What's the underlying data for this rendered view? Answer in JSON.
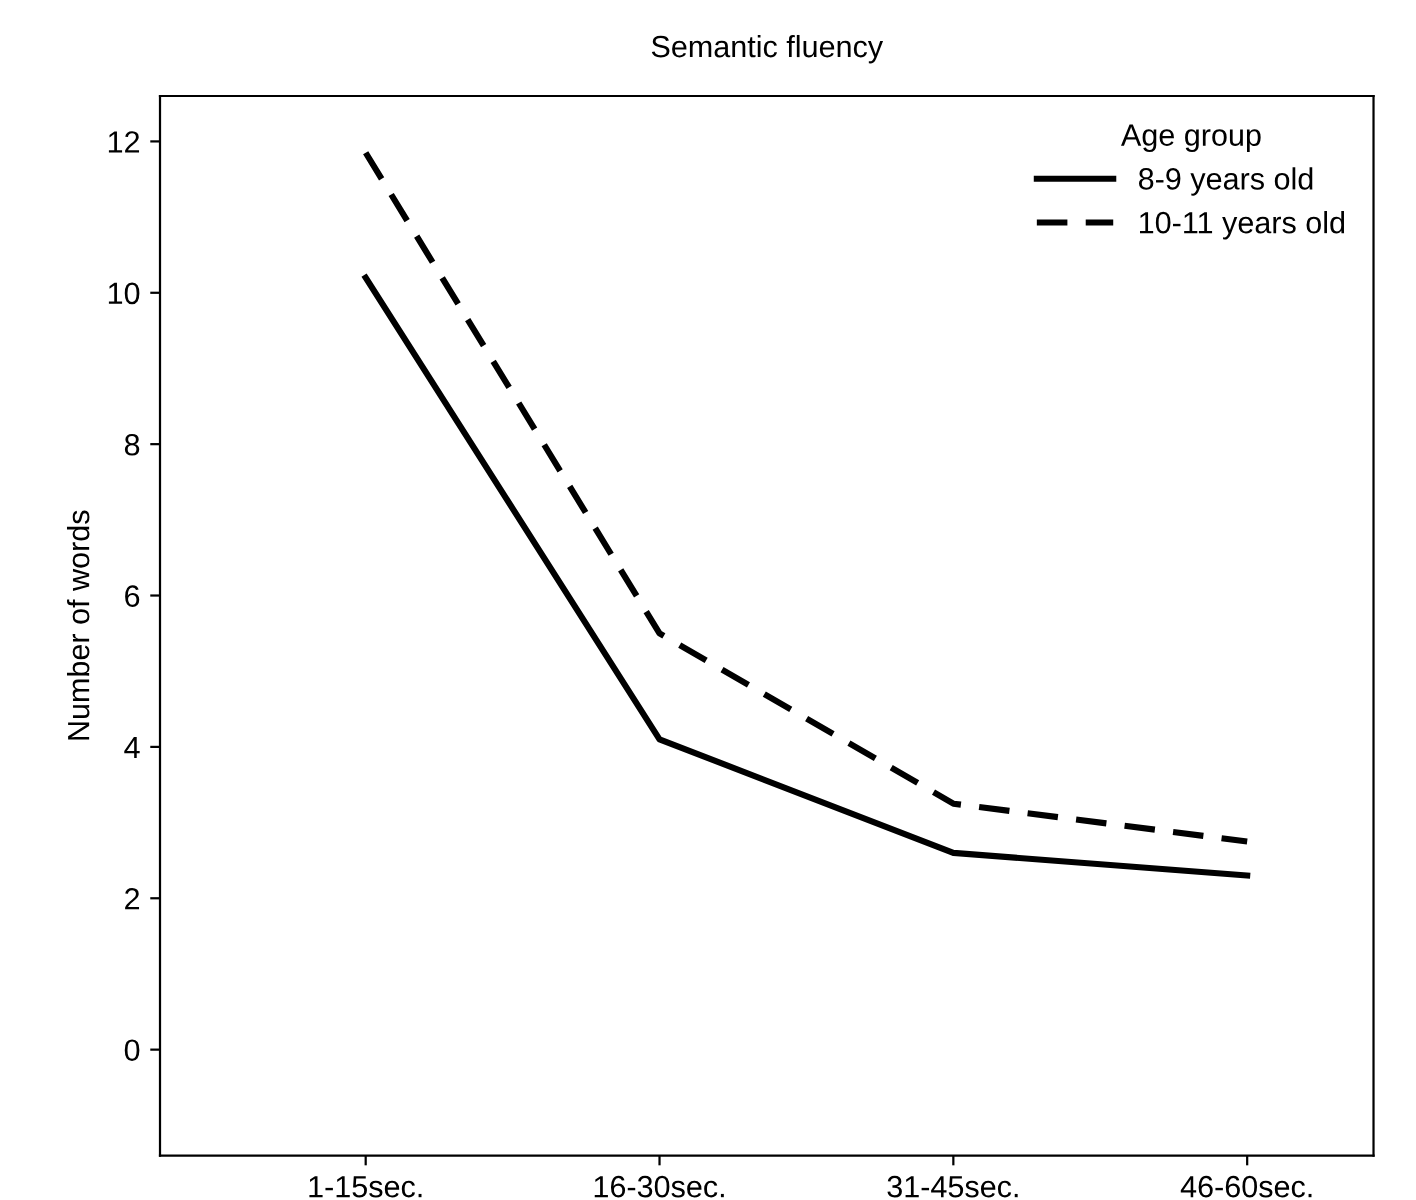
{
  "chart_data": {
    "type": "line",
    "title": "Semantic fluency",
    "ylabel": "Number of words",
    "categories": [
      "1-15sec.",
      "16-30sec.",
      "31-45sec.",
      "46-60sec."
    ],
    "series": [
      {
        "name": "8-9 years old",
        "color": "#000000",
        "line_style": "solid",
        "values": [
          10.2,
          4.1,
          2.6,
          2.3
        ]
      },
      {
        "name": "10-11 years old",
        "color": "#000000",
        "line_style": "dashed",
        "values": [
          11.85,
          5.5,
          3.25,
          2.75
        ]
      }
    ],
    "legend_title": "Age group",
    "legend": "top right",
    "ylim": [
      -1.4,
      12.6
    ],
    "yticks": [
      0,
      2,
      4,
      6,
      8,
      10,
      12
    ],
    "grid": false,
    "marker": "none"
  }
}
